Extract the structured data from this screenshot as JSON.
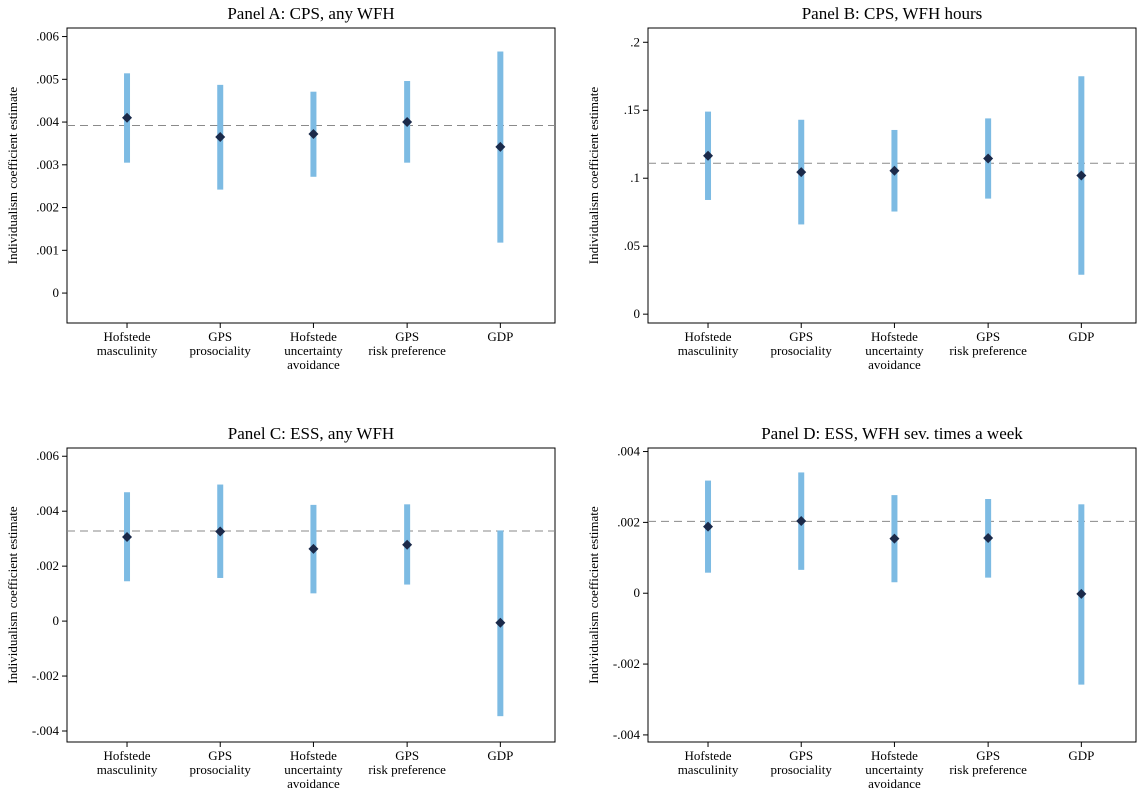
{
  "colors": {
    "ci": "#7dbbe3",
    "point": "#1b2a4a",
    "reference": "#8a8a8a",
    "axis": "#000000",
    "background": "#ffffff"
  },
  "chart_data": [
    {
      "type": "errorbar",
      "title": "Panel A: CPS, any WFH",
      "ylabel": "Individualism coefficient estimate",
      "xlabel": "",
      "categories": [
        [
          "Hofstede",
          "masculinity"
        ],
        [
          "GPS",
          "prosociality"
        ],
        [
          "Hofstede",
          "uncertainty",
          "avoidance"
        ],
        [
          "GPS",
          "risk preference"
        ],
        [
          "GDP"
        ]
      ],
      "estimates": [
        0.0041,
        0.00365,
        0.00372,
        0.004,
        0.00342
      ],
      "ci_lower": [
        0.00305,
        0.00242,
        0.00272,
        0.00305,
        0.00118
      ],
      "ci_upper": [
        0.00514,
        0.00487,
        0.00471,
        0.00496,
        0.00565
      ],
      "reference_line": 0.00392,
      "ylim": [
        -0.0007,
        0.0062
      ],
      "yticks": [
        0,
        0.001,
        0.002,
        0.003,
        0.004,
        0.005,
        0.006
      ],
      "ytick_labels": [
        "0",
        ".001",
        ".002",
        ".003",
        ".004",
        ".005",
        ".006"
      ]
    },
    {
      "type": "errorbar",
      "title": "Panel B: CPS, WFH hours",
      "ylabel": "Individualism coefficient estimate",
      "xlabel": "",
      "categories": [
        [
          "Hofstede",
          "masculinity"
        ],
        [
          "GPS",
          "prosociality"
        ],
        [
          "Hofstede",
          "uncertainty",
          "avoidance"
        ],
        [
          "GPS",
          "risk preference"
        ],
        [
          "GDP"
        ]
      ],
      "estimates": [
        0.1165,
        0.1045,
        0.1055,
        0.1145,
        0.102
      ],
      "ci_lower": [
        0.084,
        0.066,
        0.0755,
        0.085,
        0.029
      ],
      "ci_upper": [
        0.149,
        0.143,
        0.1355,
        0.144,
        0.175
      ],
      "reference_line": 0.111,
      "ylim": [
        -0.0065,
        0.2105
      ],
      "yticks": [
        0,
        0.05,
        0.1,
        0.15,
        0.2
      ],
      "ytick_labels": [
        "0",
        ".05",
        ".1",
        ".15",
        ".2"
      ]
    },
    {
      "type": "errorbar",
      "title": "Panel C: ESS, any WFH",
      "ylabel": "Individualism coefficient estimate",
      "xlabel": "",
      "categories": [
        [
          "Hofstede",
          "masculinity"
        ],
        [
          "GPS",
          "prosociality"
        ],
        [
          "Hofstede",
          "uncertainty",
          "avoidance"
        ],
        [
          "GPS",
          "risk preference"
        ],
        [
          "GDP"
        ]
      ],
      "estimates": [
        0.00306,
        0.00326,
        0.00263,
        0.00278,
        -6e-05
      ],
      "ci_lower": [
        0.00145,
        0.00157,
        0.00101,
        0.00133,
        -0.00346
      ],
      "ci_upper": [
        0.00469,
        0.00497,
        0.00423,
        0.00425,
        0.0033
      ],
      "reference_line": 0.00328,
      "ylim": [
        -0.0044,
        0.0063
      ],
      "yticks": [
        -0.004,
        -0.002,
        0,
        0.002,
        0.004,
        0.006
      ],
      "ytick_labels": [
        "-.004",
        "-.002",
        "0",
        ".002",
        ".004",
        ".006"
      ]
    },
    {
      "type": "errorbar",
      "title": "Panel D: ESS, WFH sev. times a week",
      "ylabel": "Individualism coefficient estimate",
      "xlabel": "",
      "categories": [
        [
          "Hofstede",
          "masculinity"
        ],
        [
          "GPS",
          "prosociality"
        ],
        [
          "Hofstede",
          "uncertainty",
          "avoidance"
        ],
        [
          "GPS",
          "risk preference"
        ],
        [
          "GDP"
        ]
      ],
      "estimates": [
        0.00188,
        0.00204,
        0.00154,
        0.00156,
        -2e-05
      ],
      "ci_lower": [
        0.00058,
        0.00066,
        0.00031,
        0.00044,
        -0.00258
      ],
      "ci_upper": [
        0.00318,
        0.00341,
        0.00277,
        0.00266,
        0.00251
      ],
      "reference_line": 0.00203,
      "ylim": [
        -0.0042,
        0.0041
      ],
      "yticks": [
        -0.004,
        -0.002,
        0,
        0.002,
        0.004
      ],
      "ytick_labels": [
        "-.004",
        "-.002",
        "0",
        ".002",
        ".004"
      ]
    }
  ]
}
